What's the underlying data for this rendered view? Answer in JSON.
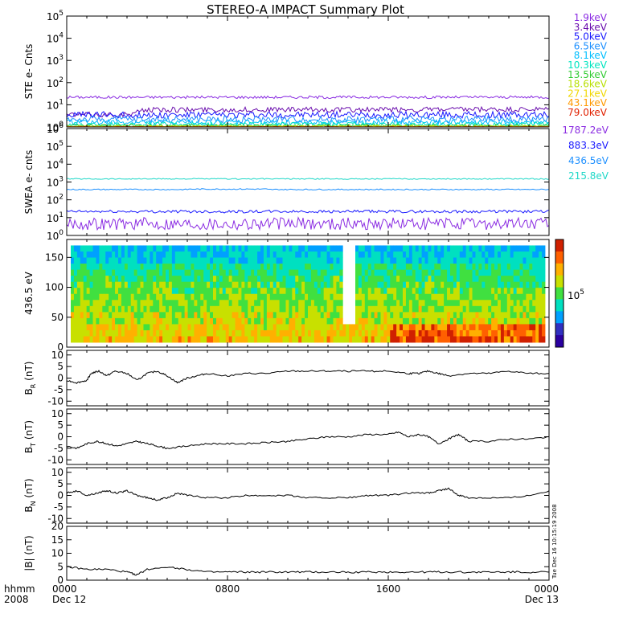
{
  "chart_data": {
    "type": "line",
    "title": "STEREO-A IMPACT Summary Plot",
    "time_axis": {
      "corner_labels": [
        "hhmm",
        "2008"
      ],
      "ticks": [
        {
          "t": 0,
          "hhmm": "0000",
          "date": "Dec 12"
        },
        {
          "t": 8,
          "hhmm": "0800",
          "date": ""
        },
        {
          "t": 16,
          "hhmm": "1600",
          "date": ""
        },
        {
          "t": 24,
          "hhmm": "0000",
          "date": "Dec 13"
        }
      ],
      "range_hours": [
        0,
        24
      ]
    },
    "timestamp": "Tue Dec 16 10:15:19 2008",
    "panels": [
      {
        "id": "ste",
        "ylabel": "STE e- Cnts",
        "yscale": "log",
        "ylim": [
          1,
          100000
        ],
        "yticks": [
          {
            "v": 1,
            "label": "10",
            "sup": "0"
          },
          {
            "v": 10,
            "label": "10",
            "sup": "1"
          },
          {
            "v": 100,
            "label": "10",
            "sup": "2"
          },
          {
            "v": 1000,
            "label": "10",
            "sup": "3"
          },
          {
            "v": 10000,
            "label": "10",
            "sup": "4"
          },
          {
            "v": 100000,
            "label": "10",
            "sup": "5"
          }
        ],
        "series": [
          {
            "name": "1.9keV",
            "color": "#8a2be2",
            "level": 22,
            "noise": 0.06
          },
          {
            "name": "3.4keV",
            "color": "#6a0dad",
            "level": 6,
            "noise": 0.12
          },
          {
            "name": "5.0keV",
            "color": "#1a1aff",
            "level": 3.5,
            "noise": 0.15
          },
          {
            "name": "6.5keV",
            "color": "#1e90ff",
            "level": 2.2,
            "noise": 0.15
          },
          {
            "name": "8.1keV",
            "color": "#00bfff",
            "level": 1.6,
            "noise": 0.12
          },
          {
            "name": "10.3keV",
            "color": "#00e5c0",
            "level": 1.3,
            "noise": 0.1
          },
          {
            "name": "13.5keV",
            "color": "#33cc33",
            "level": 1.15,
            "noise": 0.06
          },
          {
            "name": "18.6keV",
            "color": "#b8e000",
            "level": 1.08,
            "noise": 0.04
          },
          {
            "name": "27.1keV",
            "color": "#f0d800",
            "level": 1.04,
            "noise": 0.03
          },
          {
            "name": "43.1keV",
            "color": "#ff9900",
            "level": 1.02,
            "noise": 0.02
          },
          {
            "name": "79.0keV",
            "color": "#e02000",
            "level": 1.01,
            "noise": 0.01
          }
        ]
      },
      {
        "id": "swea",
        "ylabel": "SWEA e- cnts",
        "yscale": "log",
        "ylim": [
          1,
          1000000
        ],
        "yticks": [
          {
            "v": 1,
            "label": "10",
            "sup": "0"
          },
          {
            "v": 10,
            "label": "10",
            "sup": "1"
          },
          {
            "v": 100,
            "label": "10",
            "sup": "2"
          },
          {
            "v": 1000,
            "label": "10",
            "sup": "3"
          },
          {
            "v": 10000,
            "label": "10",
            "sup": "4"
          },
          {
            "v": 100000,
            "label": "10",
            "sup": "5"
          },
          {
            "v": 1000000,
            "label": "10",
            "sup": "6"
          }
        ],
        "series": [
          {
            "name": "1787.2eV",
            "color": "#8a2be2",
            "level": 4.5,
            "noise": 0.35
          },
          {
            "name": "883.3eV",
            "color": "#1a1aff",
            "level": 22,
            "noise": 0.08
          },
          {
            "name": "436.5eV",
            "color": "#1e90ff",
            "level": 380,
            "noise": 0.03
          },
          {
            "name": "215.8eV",
            "color": "#20d8c8",
            "level": 1500,
            "noise": 0.03
          }
        ]
      },
      {
        "id": "pad",
        "ylabel": "436.5 eV",
        "type": "heatmap",
        "ylim": [
          0,
          180
        ],
        "yticks": [
          0,
          50,
          100,
          150
        ],
        "colorbar_label": "10",
        "colorbar_sup": "5"
      },
      {
        "id": "br",
        "ylabel": "B",
        "ylabel_sub": "R",
        "ylabel_unit": "(nT)",
        "ylim": [
          -12,
          12
        ],
        "yticks": [
          -10,
          -5,
          0,
          5,
          10
        ],
        "series": [
          {
            "name": "",
            "color": "#000000",
            "x": [
              0,
              0.5,
              1,
              1.2,
              1.6,
              2,
              2.4,
              3,
              3.5,
              4,
              4.5,
              5,
              5.5,
              6,
              6.5,
              7,
              8,
              9,
              10,
              11,
              12,
              13,
              14,
              15,
              16,
              17,
              17.5,
              18,
              18.5,
              19,
              20,
              21,
              22,
              23,
              24
            ],
            "y": [
              -1,
              -2,
              -1,
              2,
              3,
              1,
              3,
              2,
              -1,
              2,
              3,
              1,
              -2,
              0,
              1,
              2,
              1,
              2,
              2,
              3,
              3,
              3,
              3,
              3,
              3,
              2,
              2,
              3,
              2,
              1,
              2,
              2,
              3,
              2,
              2
            ]
          }
        ]
      },
      {
        "id": "bt",
        "ylabel": "B",
        "ylabel_sub": "T",
        "ylabel_unit": "(nT)",
        "ylim": [
          -12,
          12
        ],
        "yticks": [
          -10,
          -5,
          0,
          5,
          10
        ],
        "series": [
          {
            "name": "",
            "color": "#000000",
            "x": [
              0,
              0.5,
              1,
              1.5,
              2,
              2.5,
              3,
              3.5,
              4,
              4.5,
              5,
              6,
              7,
              8,
              9,
              10,
              11,
              12,
              13,
              14,
              15,
              16,
              16.5,
              17,
              17.5,
              18,
              18.5,
              19,
              19.5,
              20,
              21,
              22,
              23,
              24
            ],
            "y": [
              -4,
              -5,
              -3,
              -2,
              -3,
              -4,
              -3,
              -2,
              -3,
              -4,
              -5,
              -4,
              -3,
              -3,
              -3,
              -2.5,
              -2,
              -1,
              0,
              0,
              1,
              1,
              2,
              0,
              1,
              0,
              -3,
              -1,
              1,
              -2,
              -2,
              -1,
              -1,
              0
            ]
          }
        ]
      },
      {
        "id": "bn",
        "ylabel": "B",
        "ylabel_sub": "N",
        "ylabel_unit": "(nT)",
        "ylim": [
          -12,
          12
        ],
        "yticks": [
          -10,
          -5,
          0,
          5,
          10
        ],
        "series": [
          {
            "name": "",
            "color": "#000000",
            "x": [
              0,
              0.5,
              1,
              1.5,
              2,
              2.5,
              3,
              3.5,
              4,
              4.5,
              5,
              5.5,
              6,
              7,
              8,
              9,
              10,
              11,
              12,
              13,
              14,
              15,
              16,
              17,
              18,
              18.5,
              19,
              19.5,
              20,
              21,
              22,
              23,
              24
            ],
            "y": [
              1,
              2,
              0,
              1,
              2,
              1,
              2,
              0,
              -1,
              -2,
              -1,
              1,
              0,
              -1,
              -1,
              0,
              0,
              0,
              -1,
              -1,
              -1,
              0,
              0,
              1,
              1,
              2,
              3,
              0,
              -1,
              -1,
              -1,
              0,
              2
            ]
          }
        ]
      },
      {
        "id": "bmag",
        "ylabel": "|B|",
        "ylabel_unit": "(nT)",
        "ylim": [
          0,
          20
        ],
        "yticks": [
          0,
          5,
          10,
          15,
          20
        ],
        "series": [
          {
            "name": "",
            "color": "#000000",
            "x": [
              0,
              1,
              2,
              3,
              3.5,
              4,
              5,
              6,
              7,
              8,
              9,
              10,
              11,
              12,
              13,
              14,
              15,
              16,
              17,
              18,
              19,
              20,
              21,
              22,
              23,
              24
            ],
            "y": [
              5,
              4,
              4,
              3,
              2,
              4,
              5,
              4,
              3,
              3,
              3,
              3,
              3,
              3,
              3,
              3,
              3,
              3,
              3,
              3,
              3,
              3,
              3,
              3,
              3,
              3
            ]
          }
        ]
      }
    ]
  }
}
